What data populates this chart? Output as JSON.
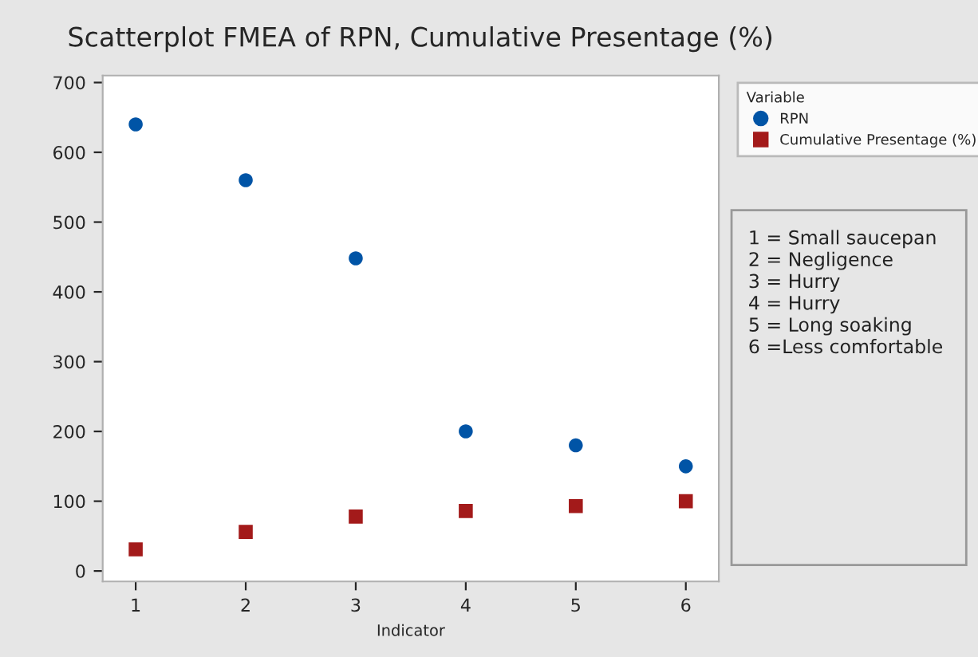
{
  "chart_data": {
    "type": "scatter",
    "title": "Scatterplot FMEA of RPN, Cumulative Presentage (%)",
    "xlabel": "Indicator",
    "legend_title": "Variable",
    "x": [
      1,
      2,
      3,
      4,
      5,
      6
    ],
    "series": [
      {
        "name": "RPN",
        "color": "#0054a6",
        "marker": "circle",
        "values": [
          640,
          560,
          448,
          200,
          180,
          150
        ]
      },
      {
        "name": "Cumulative Presentage (%)",
        "color": "#a31a1a",
        "marker": "square",
        "values": [
          31,
          56,
          78,
          86,
          93,
          100
        ]
      }
    ],
    "xlim": [
      0.7,
      6.3
    ],
    "xticks": [
      1,
      2,
      3,
      4,
      5,
      6
    ],
    "ylim": [
      -15,
      710
    ],
    "yticks": [
      0,
      100,
      200,
      300,
      400,
      500,
      600,
      700
    ],
    "grid": false,
    "legend": "top right",
    "annotations": [
      "1 = Small saucepan",
      "2 = Negligence",
      "3 = Hurry",
      "4 = Hurry",
      "5 = Long soaking",
      "6 =Less comfortable"
    ]
  }
}
